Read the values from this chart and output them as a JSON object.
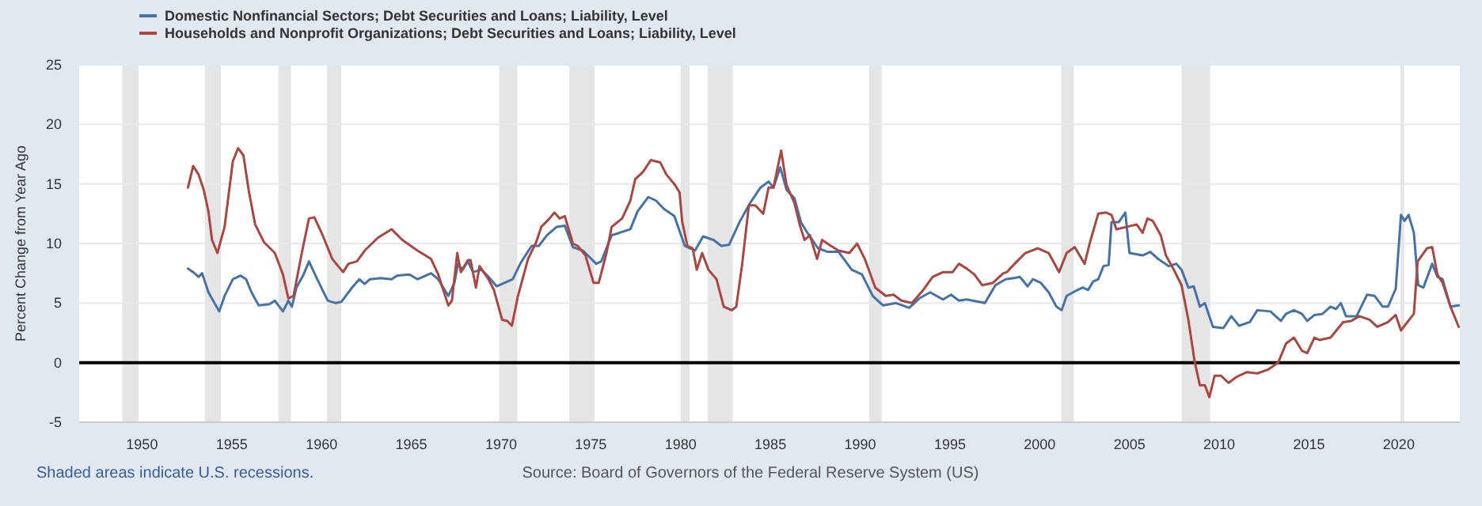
{
  "chart_data": {
    "type": "line",
    "ylabel": "Percent Change from Year Ago",
    "xlim": [
      1946.5,
      2023.4
    ],
    "xticks": [
      1950,
      1955,
      1960,
      1965,
      1970,
      1975,
      1980,
      1985,
      1990,
      1995,
      2000,
      2005,
      2010,
      2015,
      2020
    ],
    "ylim": [
      -5,
      25
    ],
    "yticks": [
      -5,
      0,
      5,
      10,
      15,
      20,
      25
    ],
    "grid": "y",
    "legend": "top left",
    "line_style": "solid",
    "marker": "none",
    "ref_lines": [
      {
        "axis": "y",
        "value": 0,
        "color": "#000000"
      }
    ],
    "bands": [
      {
        "axis": "x",
        "from": 1948.9,
        "to": 1949.8,
        "color": "#e5e5e5"
      },
      {
        "axis": "x",
        "from": 1953.5,
        "to": 1954.4,
        "color": "#e5e5e5"
      },
      {
        "axis": "x",
        "from": 1957.6,
        "to": 1958.3,
        "color": "#e5e5e5"
      },
      {
        "axis": "x",
        "from": 1960.3,
        "to": 1961.1,
        "color": "#e5e5e5"
      },
      {
        "axis": "x",
        "from": 1969.9,
        "to": 1970.9,
        "color": "#e5e5e5"
      },
      {
        "axis": "x",
        "from": 1973.8,
        "to": 1975.2,
        "color": "#e5e5e5"
      },
      {
        "axis": "x",
        "from": 1980.0,
        "to": 1980.5,
        "color": "#e5e5e5"
      },
      {
        "axis": "x",
        "from": 1981.5,
        "to": 1982.9,
        "color": "#e5e5e5"
      },
      {
        "axis": "x",
        "from": 1990.5,
        "to": 1991.2,
        "color": "#e5e5e5"
      },
      {
        "axis": "x",
        "from": 2001.2,
        "to": 2001.9,
        "color": "#e5e5e5"
      },
      {
        "axis": "x",
        "from": 2007.9,
        "to": 2009.5,
        "color": "#e5e5e5"
      },
      {
        "axis": "x",
        "from": 2020.1,
        "to": 2020.3,
        "color": "#e5e5e5"
      }
    ],
    "annotations": [
      "Shaded areas indicate U.S. recessions.",
      "Source: Board of Governors of the Federal Reserve System (US)"
    ],
    "series": [
      {
        "name": "Domestic Nonfinancial Sectors; Debt Securities and Loans; Liability, Level",
        "color": "#4572a7",
        "x": [
          1952.56,
          1952.85,
          1953.15,
          1953.35,
          1953.7,
          1954.3,
          1954.6,
          1955.06,
          1955.5,
          1955.8,
          1956.1,
          1956.5,
          1957.1,
          1957.4,
          1957.85,
          1958.15,
          1958.35,
          1958.6,
          1959.0,
          1959.3,
          1959.76,
          1960.35,
          1960.8,
          1961.1,
          1961.7,
          1962.1,
          1962.4,
          1962.7,
          1963.3,
          1963.9,
          1964.2,
          1964.9,
          1965.35,
          1966.1,
          1966.5,
          1967.06,
          1967.4,
          1967.6,
          1967.85,
          1968.15,
          1968.44,
          1968.9,
          1969.3,
          1969.76,
          1970.35,
          1970.65,
          1971.1,
          1971.7,
          1972.1,
          1972.56,
          1973.1,
          1973.55,
          1974.0,
          1974.56,
          1975.3,
          1975.58,
          1976.16,
          1976.6,
          1977.2,
          1977.6,
          1978.2,
          1978.63,
          1979.07,
          1979.65,
          1980.23,
          1980.8,
          1981.25,
          1981.83,
          1982.27,
          1982.7,
          1983.28,
          1983.87,
          1984.45,
          1984.9,
          1985.17,
          1985.55,
          1985.9,
          1986.34,
          1986.7,
          1987.06,
          1987.65,
          1988.2,
          1988.8,
          1989.53,
          1990.1,
          1990.7,
          1991.28,
          1992.0,
          1992.73,
          1993.3,
          1993.9,
          1994.62,
          1995.06,
          1995.5,
          1995.93,
          1996.95,
          1997.53,
          1998.1,
          1998.55,
          1998.9,
          1999.33,
          1999.62,
          2000.06,
          2000.5,
          2000.93,
          2001.22,
          2001.5,
          2002.1,
          2002.4,
          2002.7,
          2002.97,
          2003.26,
          2003.55,
          2003.84,
          2004.0,
          2004.4,
          2004.77,
          2005.0,
          2005.73,
          2006.16,
          2006.6,
          2007.18,
          2007.6,
          2007.9,
          2008.28,
          2008.58,
          2008.92,
          2009.2,
          2009.65,
          2010.23,
          2010.67,
          2011.1,
          2011.7,
          2012.12,
          2012.85,
          2013.43,
          2013.72,
          2014.16,
          2014.6,
          2014.9,
          2015.3,
          2015.75,
          2016.2,
          2016.5,
          2016.77,
          2017.06,
          2017.65,
          2018.23,
          2018.66,
          2019.1,
          2019.4,
          2019.83,
          2020.12,
          2020.32,
          2020.55,
          2020.84,
          2021.08,
          2021.37,
          2021.86,
          2022.15,
          2022.44,
          2022.88,
          2023.34
        ],
        "values": [
          7.9,
          7.6,
          7.2,
          7.5,
          5.9,
          4.3,
          5.6,
          7.0,
          7.3,
          7.0,
          5.9,
          4.8,
          4.9,
          5.2,
          4.3,
          5.2,
          4.7,
          6.3,
          7.4,
          8.5,
          7.0,
          5.2,
          5.0,
          5.1,
          6.3,
          7.0,
          6.6,
          7.0,
          7.1,
          7.0,
          7.3,
          7.4,
          7.0,
          7.5,
          7.0,
          5.6,
          6.7,
          8.3,
          7.8,
          8.5,
          7.6,
          7.8,
          7.2,
          6.4,
          6.8,
          7.0,
          8.4,
          9.8,
          9.8,
          10.7,
          11.4,
          11.5,
          9.7,
          9.4,
          8.3,
          8.5,
          10.7,
          10.9,
          11.2,
          12.7,
          13.9,
          13.6,
          12.9,
          12.3,
          9.8,
          9.4,
          10.6,
          10.3,
          9.8,
          9.9,
          11.8,
          13.4,
          14.7,
          15.2,
          14.7,
          16.4,
          14.5,
          13.8,
          11.8,
          10.9,
          9.6,
          9.3,
          9.3,
          7.8,
          7.4,
          5.6,
          4.8,
          5.0,
          4.6,
          5.4,
          5.9,
          5.3,
          5.7,
          5.2,
          5.3,
          5.0,
          6.5,
          7.0,
          7.1,
          7.2,
          6.4,
          7.0,
          6.7,
          5.9,
          4.7,
          4.4,
          5.6,
          6.1,
          6.3,
          6.1,
          6.8,
          7.0,
          8.1,
          8.2,
          11.8,
          11.8,
          12.6,
          9.2,
          9.0,
          9.3,
          8.7,
          8.1,
          8.3,
          7.8,
          6.3,
          6.4,
          4.7,
          5.0,
          3.0,
          2.9,
          3.9,
          3.1,
          3.4,
          4.4,
          4.3,
          3.5,
          4.1,
          4.4,
          4.1,
          3.5,
          4.0,
          4.1,
          4.7,
          4.5,
          5.0,
          3.9,
          3.9,
          5.7,
          5.6,
          4.7,
          4.7,
          6.2,
          12.4,
          11.9,
          12.4,
          10.9,
          6.5,
          6.3,
          8.3,
          7.2,
          7.0,
          4.7,
          4.8
        ]
      },
      {
        "name": "Households and Nonprofit Organizations; Debt Securities and Loans; Liability, Level",
        "color": "#aa4643",
        "x": [
          1952.56,
          1952.85,
          1953.15,
          1953.44,
          1953.7,
          1953.9,
          1954.2,
          1954.6,
          1955.06,
          1955.35,
          1955.65,
          1955.94,
          1956.3,
          1956.8,
          1957.4,
          1957.85,
          1958.15,
          1958.44,
          1958.9,
          1959.3,
          1959.6,
          1960.06,
          1960.6,
          1961.2,
          1961.5,
          1961.97,
          1962.4,
          1963.15,
          1963.9,
          1964.5,
          1965.35,
          1966.1,
          1966.5,
          1967.06,
          1967.26,
          1967.56,
          1967.76,
          1968.15,
          1968.3,
          1968.6,
          1968.8,
          1969.3,
          1969.6,
          1970.06,
          1970.35,
          1970.6,
          1970.94,
          1971.5,
          1971.95,
          1972.24,
          1972.7,
          1972.97,
          1973.26,
          1973.55,
          1974.0,
          1974.27,
          1974.7,
          1975.15,
          1975.44,
          1975.87,
          1976.16,
          1976.74,
          1977.2,
          1977.47,
          1977.9,
          1978.34,
          1978.87,
          1979.2,
          1979.65,
          1979.94,
          1980.09,
          1980.38,
          1980.67,
          1980.9,
          1981.2,
          1981.55,
          1982.0,
          1982.4,
          1982.85,
          1983.1,
          1983.43,
          1983.8,
          1984.16,
          1984.6,
          1984.9,
          1985.17,
          1985.6,
          1985.9,
          1986.34,
          1986.63,
          1986.9,
          1987.2,
          1987.6,
          1987.88,
          1988.37,
          1988.8,
          1989.4,
          1989.83,
          1990.26,
          1990.84,
          1991.42,
          1991.86,
          1992.3,
          1992.88,
          1993.46,
          1994.04,
          1994.62,
          1995.15,
          1995.5,
          1995.93,
          1996.36,
          1996.8,
          1997.4,
          1997.97,
          1998.17,
          1998.6,
          1999.2,
          1999.9,
          2000.5,
          2001.08,
          2001.5,
          2001.95,
          2002.5,
          2002.8,
          2003.26,
          2003.7,
          2004.0,
          2004.27,
          2004.86,
          2005.4,
          2005.73,
          2006.0,
          2006.3,
          2006.74,
          2007.03,
          2007.47,
          2007.9,
          2008.28,
          2008.63,
          2008.92,
          2009.2,
          2009.45,
          2009.74,
          2010.1,
          2010.52,
          2010.96,
          2011.54,
          2012.12,
          2012.7,
          2013.28,
          2013.72,
          2014.16,
          2014.6,
          2014.9,
          2015.3,
          2015.6,
          2016.2,
          2016.9,
          2017.35,
          2017.8,
          2018.37,
          2018.8,
          2019.4,
          2019.83,
          2020.12,
          2020.84,
          2021.05,
          2021.57,
          2021.86,
          2022.15,
          2022.44,
          2022.88,
          2023.34
        ],
        "values": [
          14.7,
          16.5,
          15.8,
          14.5,
          12.7,
          10.3,
          9.2,
          11.4,
          16.9,
          18.0,
          17.4,
          14.5,
          11.6,
          10.1,
          9.2,
          7.4,
          5.4,
          5.6,
          9.2,
          12.1,
          12.2,
          10.7,
          8.7,
          7.6,
          8.3,
          8.5,
          9.4,
          10.5,
          11.2,
          10.3,
          9.4,
          8.7,
          7.4,
          4.8,
          5.2,
          9.2,
          7.6,
          8.6,
          8.6,
          6.3,
          8.1,
          7.0,
          6.1,
          3.6,
          3.5,
          3.1,
          5.6,
          8.7,
          10.1,
          11.4,
          12.1,
          12.6,
          12.1,
          12.3,
          10.0,
          9.8,
          9.0,
          6.7,
          6.7,
          9.2,
          11.4,
          12.1,
          13.6,
          15.4,
          16.0,
          17.0,
          16.8,
          15.8,
          15.0,
          14.3,
          11.8,
          9.8,
          9.6,
          7.8,
          9.2,
          7.8,
          7.0,
          4.7,
          4.4,
          4.7,
          8.3,
          13.2,
          13.2,
          12.5,
          14.7,
          14.7,
          17.8,
          14.9,
          13.4,
          11.6,
          10.3,
          10.7,
          8.7,
          10.3,
          9.8,
          9.4,
          9.2,
          10.0,
          8.7,
          6.3,
          5.6,
          5.7,
          5.2,
          5.0,
          6.0,
          7.2,
          7.6,
          7.6,
          8.3,
          7.9,
          7.4,
          6.5,
          6.7,
          7.5,
          7.6,
          8.3,
          9.2,
          9.6,
          9.2,
          7.6,
          9.2,
          9.7,
          8.3,
          10.1,
          12.5,
          12.6,
          12.4,
          11.2,
          11.4,
          11.6,
          10.9,
          12.1,
          11.9,
          10.7,
          9.0,
          7.8,
          6.5,
          3.6,
          0.1,
          -1.9,
          -1.9,
          -2.9,
          -1.1,
          -1.1,
          -1.7,
          -1.2,
          -0.8,
          -0.9,
          -0.6,
          0.0,
          1.6,
          2.1,
          1.0,
          0.8,
          2.1,
          1.9,
          2.1,
          3.4,
          3.5,
          3.9,
          3.6,
          3.0,
          3.4,
          4.0,
          2.7,
          4.1,
          8.5,
          9.6,
          9.7,
          7.4,
          6.7,
          4.7,
          3.0
        ]
      }
    ]
  }
}
